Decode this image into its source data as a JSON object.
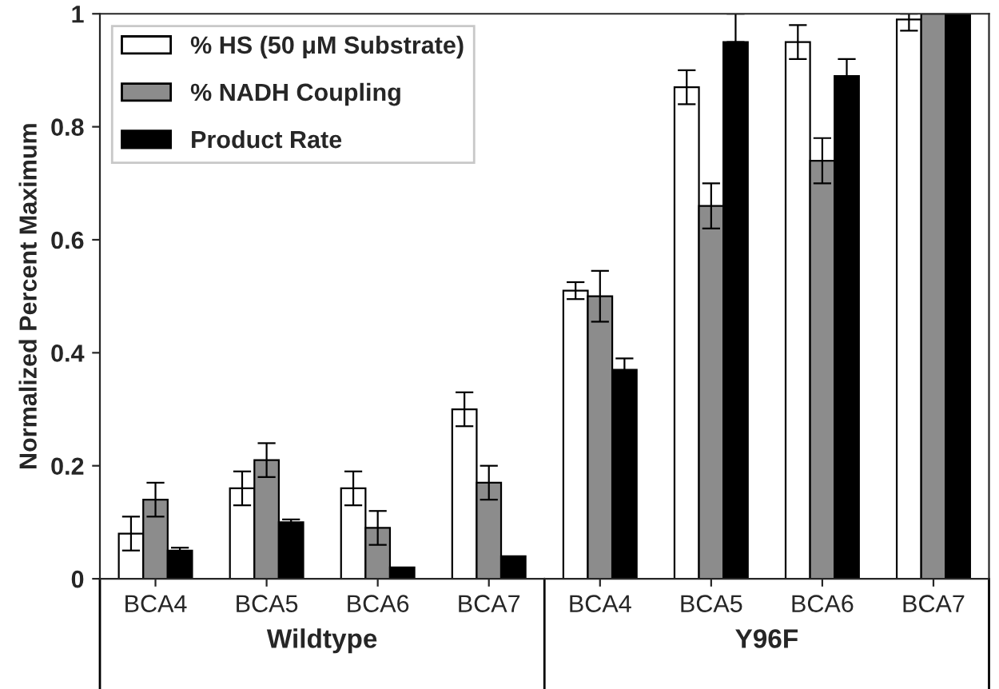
{
  "chart_data": {
    "type": "bar",
    "ylabel": "Normalized Percent Maximum",
    "categories": [
      "BCA4",
      "BCA5",
      "BCA6",
      "BCA7",
      "BCA4",
      "BCA5",
      "BCA6",
      "BCA7"
    ],
    "series": [
      {
        "name": "% HS (50 μM Substrate)",
        "color": "#ffffff",
        "values": [
          0.08,
          0.16,
          0.16,
          0.3,
          0.51,
          0.87,
          0.95,
          0.99
        ],
        "errors": [
          0.03,
          0.03,
          0.03,
          0.03,
          0.015,
          0.03,
          0.03,
          [
            0.97,
            1.0
          ]
        ]
      },
      {
        "name": "% NADH Coupling",
        "color": "#8c8c8c",
        "values": [
          0.14,
          0.21,
          0.09,
          0.17,
          0.5,
          0.66,
          0.74,
          1.0
        ],
        "errors": [
          0.03,
          0.03,
          0.03,
          0.03,
          0.045,
          0.04,
          0.04,
          null
        ]
      },
      {
        "name": "Product Rate",
        "color": "#000000",
        "values": [
          0.05,
          0.1,
          0.02,
          0.04,
          0.37,
          0.95,
          0.89,
          1.0
        ],
        "errors": [
          0.005,
          0.005,
          null,
          null,
          0.02,
          [
            0.95,
            1.0
          ],
          0.03,
          null
        ]
      }
    ],
    "annotations": [
      "Wildtype",
      "Y96F"
    ],
    "ylim": [
      0,
      1
    ],
    "yticks": [
      0,
      0.2,
      0.4,
      0.6,
      0.8,
      1
    ],
    "grid": false,
    "legend": "top left"
  }
}
